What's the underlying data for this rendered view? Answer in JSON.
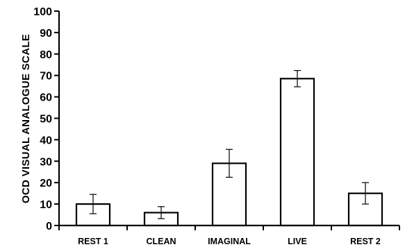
{
  "chart_data": {
    "type": "bar",
    "title": "",
    "xlabel": "",
    "ylabel": "OCD VISUAL ANALOGUE SCALE",
    "ylim": [
      0,
      100
    ],
    "yticks": [
      0,
      10,
      20,
      30,
      40,
      50,
      60,
      70,
      80,
      90,
      100
    ],
    "grid": false,
    "categories": [
      "REST 1",
      "CLEAN",
      "IMAGINAL",
      "LIVE",
      "REST 2"
    ],
    "values": [
      10,
      6,
      29,
      68.5,
      15
    ],
    "errors": [
      4.5,
      2.8,
      6.5,
      3.8,
      5
    ]
  }
}
